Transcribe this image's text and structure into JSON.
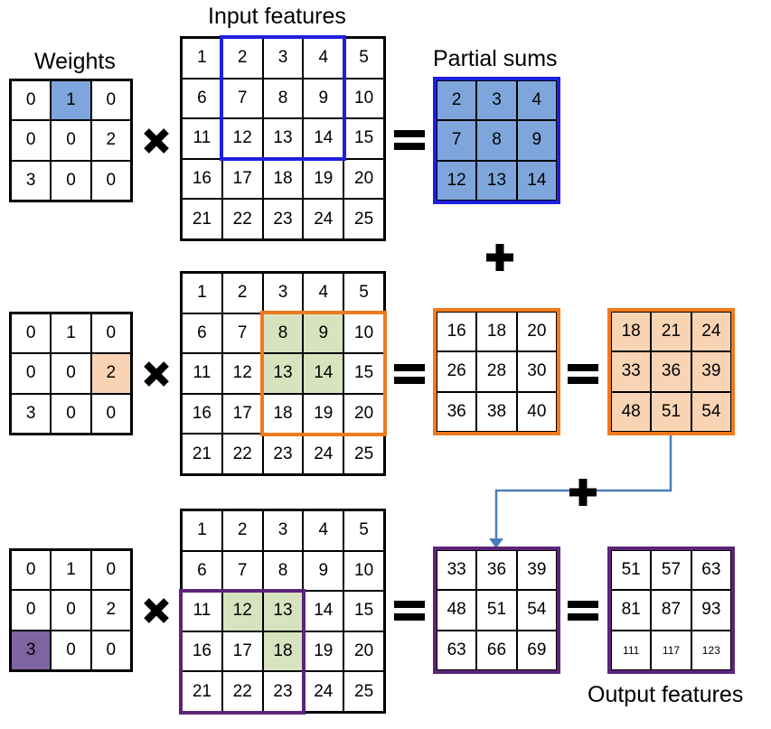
{
  "titles": {
    "weights": "Weights",
    "input_features": "Input features",
    "partial_sums": "Partial sums",
    "output_features": "Output features"
  },
  "colors": {
    "blue_frame": "#1f1fe0",
    "blue_fill": "#7fa6dc",
    "orange_frame": "#f07a1e",
    "orange_fill": "#f9d4b4",
    "green_fill": "#d7e3bf",
    "purple_frame": "#5d2478",
    "purple_fill": "#8064a2",
    "arrow": "#4a7ebb"
  },
  "rows": [
    {
      "weights": [
        [
          "0",
          "1",
          "0"
        ],
        [
          "0",
          "0",
          "2"
        ],
        [
          "3",
          "0",
          "0"
        ]
      ],
      "weight_highlight": [
        0,
        1
      ],
      "input": [
        [
          "1",
          "2",
          "3",
          "4",
          "5"
        ],
        [
          "6",
          "7",
          "8",
          "9",
          "10"
        ],
        [
          "11",
          "12",
          "13",
          "14",
          "15"
        ],
        [
          "16",
          "17",
          "18",
          "19",
          "20"
        ],
        [
          "21",
          "22",
          "23",
          "24",
          "25"
        ]
      ],
      "product": [
        [
          "2",
          "3",
          "4"
        ],
        [
          "7",
          "8",
          "9"
        ],
        [
          "12",
          "13",
          "14"
        ]
      ],
      "partial_sum": null
    },
    {
      "weights": [
        [
          "0",
          "1",
          "0"
        ],
        [
          "0",
          "0",
          "2"
        ],
        [
          "3",
          "0",
          "0"
        ]
      ],
      "weight_highlight": [
        1,
        2
      ],
      "input": [
        [
          "1",
          "2",
          "3",
          "4",
          "5"
        ],
        [
          "6",
          "7",
          "8",
          "9",
          "10"
        ],
        [
          "11",
          "12",
          "13",
          "14",
          "15"
        ],
        [
          "16",
          "17",
          "18",
          "19",
          "20"
        ],
        [
          "21",
          "22",
          "23",
          "24",
          "25"
        ]
      ],
      "product": [
        [
          "16",
          "18",
          "20"
        ],
        [
          "26",
          "28",
          "30"
        ],
        [
          "36",
          "38",
          "40"
        ]
      ],
      "partial_sum": [
        [
          "18",
          "21",
          "24"
        ],
        [
          "33",
          "36",
          "39"
        ],
        [
          "48",
          "51",
          "54"
        ]
      ]
    },
    {
      "weights": [
        [
          "0",
          "1",
          "0"
        ],
        [
          "0",
          "0",
          "2"
        ],
        [
          "3",
          "0",
          "0"
        ]
      ],
      "weight_highlight": [
        2,
        0
      ],
      "input": [
        [
          "1",
          "2",
          "3",
          "4",
          "5"
        ],
        [
          "6",
          "7",
          "8",
          "9",
          "10"
        ],
        [
          "11",
          "12",
          "13",
          "14",
          "15"
        ],
        [
          "16",
          "17",
          "18",
          "19",
          "20"
        ],
        [
          "21",
          "22",
          "23",
          "24",
          "25"
        ]
      ],
      "product": [
        [
          "33",
          "36",
          "39"
        ],
        [
          "48",
          "51",
          "54"
        ],
        [
          "63",
          "66",
          "69"
        ]
      ],
      "partial_sum": [
        [
          "51",
          "57",
          "63"
        ],
        [
          "81",
          "87",
          "93"
        ],
        [
          "111",
          "117",
          "123"
        ]
      ]
    }
  ],
  "icons": [
    "multiply-icon",
    "equals-icon",
    "plus-icon",
    "arrow-icon"
  ]
}
